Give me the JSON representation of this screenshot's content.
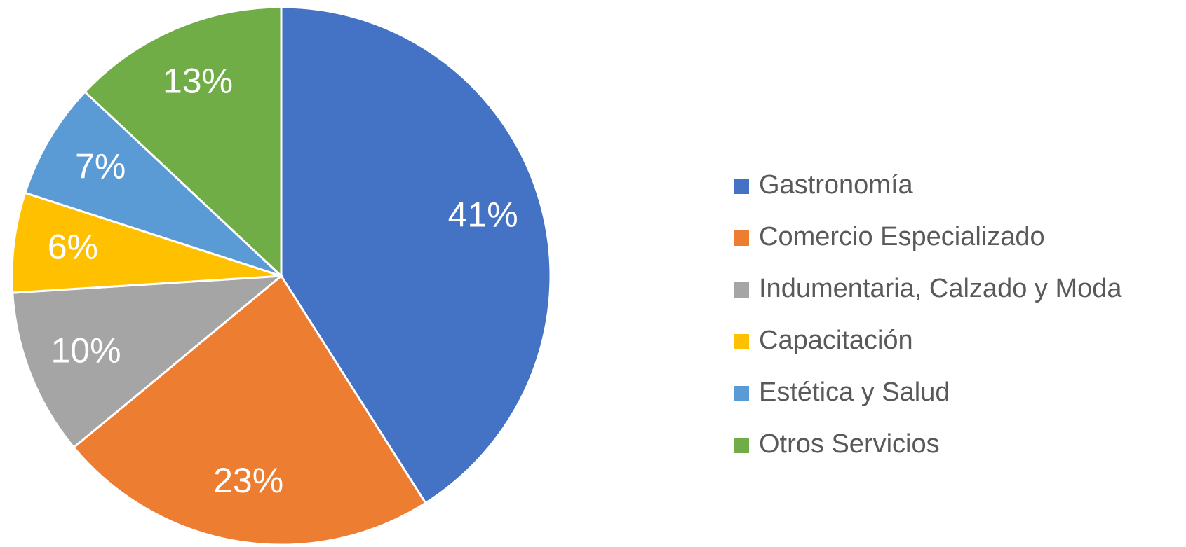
{
  "chart_data": {
    "type": "pie",
    "categories": [
      "Gastronomía",
      "Comercio Especializado",
      "Indumentaria, Calzado y Moda",
      "Capacitación",
      "Estética y Salud",
      "Otros Servicios"
    ],
    "values": [
      41,
      23,
      10,
      6,
      7,
      13
    ],
    "value_labels": [
      "41%",
      "23%",
      "10%",
      "6%",
      "7%",
      "13%"
    ],
    "colors": [
      "#4472c4",
      "#ed7d31",
      "#a5a5a5",
      "#ffc000",
      "#5b9bd5",
      "#70ad47"
    ],
    "legend": "right"
  }
}
